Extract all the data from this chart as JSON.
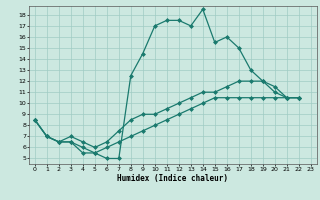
{
  "xlabel": "Humidex (Indice chaleur)",
  "bg_color": "#cce8e0",
  "grid_color": "#a0ccc4",
  "line_color": "#1a7a6e",
  "marker": "D",
  "markersize": 2.0,
  "linewidth": 0.9,
  "xlim": [
    -0.5,
    23.5
  ],
  "ylim": [
    4.5,
    18.8
  ],
  "xticks": [
    0,
    1,
    2,
    3,
    4,
    5,
    6,
    7,
    8,
    9,
    10,
    11,
    12,
    13,
    14,
    15,
    16,
    17,
    18,
    19,
    20,
    21,
    22,
    23
  ],
  "yticks": [
    5,
    6,
    7,
    8,
    9,
    10,
    11,
    12,
    13,
    14,
    15,
    16,
    17,
    18
  ],
  "series1": [
    [
      0,
      8.5
    ],
    [
      1,
      7.0
    ],
    [
      2,
      6.5
    ],
    [
      3,
      6.5
    ],
    [
      4,
      5.5
    ],
    [
      5,
      5.5
    ],
    [
      6,
      5.0
    ],
    [
      7,
      5.0
    ],
    [
      8,
      12.5
    ],
    [
      9,
      14.5
    ],
    [
      10,
      17.0
    ],
    [
      11,
      17.5
    ],
    [
      12,
      17.5
    ],
    [
      13,
      17.0
    ],
    [
      14,
      18.5
    ],
    [
      15,
      15.5
    ],
    [
      16,
      16.0
    ],
    [
      17,
      15.0
    ],
    [
      18,
      13.0
    ],
    [
      19,
      12.0
    ],
    [
      20,
      11.0
    ],
    [
      21,
      10.5
    ],
    [
      22,
      10.5
    ]
  ],
  "series2": [
    [
      0,
      8.5
    ],
    [
      1,
      7.0
    ],
    [
      2,
      6.5
    ],
    [
      3,
      7.0
    ],
    [
      4,
      6.5
    ],
    [
      5,
      6.0
    ],
    [
      6,
      6.5
    ],
    [
      7,
      7.5
    ],
    [
      8,
      8.5
    ],
    [
      9,
      9.0
    ],
    [
      10,
      9.0
    ],
    [
      11,
      9.5
    ],
    [
      12,
      10.0
    ],
    [
      13,
      10.5
    ],
    [
      14,
      11.0
    ],
    [
      15,
      11.0
    ],
    [
      16,
      11.5
    ],
    [
      17,
      12.0
    ],
    [
      18,
      12.0
    ],
    [
      19,
      12.0
    ],
    [
      20,
      11.5
    ],
    [
      21,
      10.5
    ],
    [
      22,
      10.5
    ]
  ],
  "series3": [
    [
      0,
      8.5
    ],
    [
      1,
      7.0
    ],
    [
      2,
      6.5
    ],
    [
      3,
      6.5
    ],
    [
      4,
      6.0
    ],
    [
      5,
      5.5
    ],
    [
      6,
      6.0
    ],
    [
      7,
      6.5
    ],
    [
      8,
      7.0
    ],
    [
      9,
      7.5
    ],
    [
      10,
      8.0
    ],
    [
      11,
      8.5
    ],
    [
      12,
      9.0
    ],
    [
      13,
      9.5
    ],
    [
      14,
      10.0
    ],
    [
      15,
      10.5
    ],
    [
      16,
      10.5
    ],
    [
      17,
      10.5
    ],
    [
      18,
      10.5
    ],
    [
      19,
      10.5
    ],
    [
      20,
      10.5
    ],
    [
      21,
      10.5
    ],
    [
      22,
      10.5
    ]
  ]
}
